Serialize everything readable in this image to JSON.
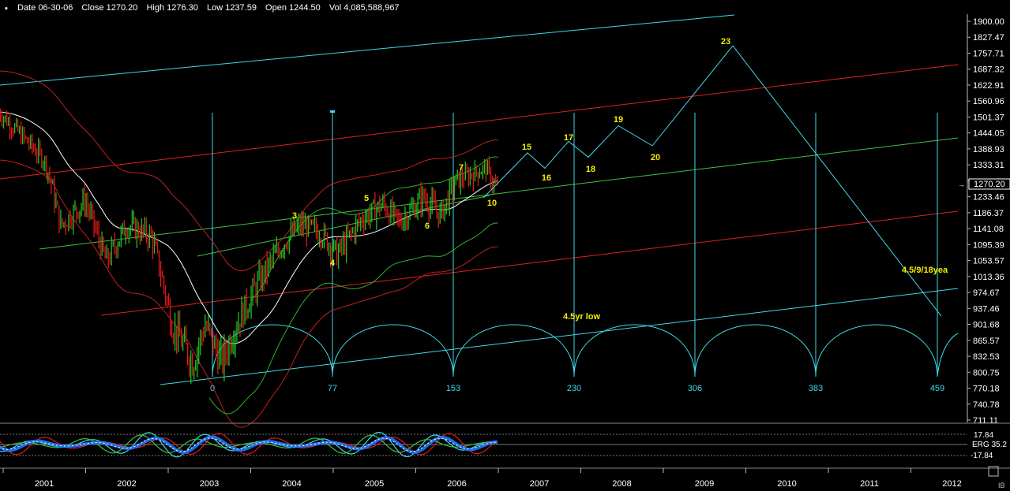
{
  "header": {
    "date_label": "Date",
    "date": "06-30-06",
    "close_label": "Close",
    "close": "1270.20",
    "high_label": "High",
    "high": "1276.30",
    "low_label": "Low",
    "low": "1237.59",
    "open_label": "Open",
    "open": "1244.50",
    "vol_label": "Vol",
    "vol": "4,085,588,967"
  },
  "chart_data": {
    "type": "line",
    "price_axis_ticks": [
      "1900.00",
      "1827.47",
      "1757.71",
      "1687.32",
      "1622.91",
      "1560.96",
      "1501.37",
      "1444.05",
      "1388.93",
      "1333.31",
      "1270.20",
      "1233.46",
      "1186.37",
      "1141.08",
      "1095.39",
      "1053.57",
      "1013.36",
      "974.67",
      "937.46",
      "901.68",
      "865.57",
      "832.53",
      "800.75",
      "770.18",
      "740.78",
      "711.11"
    ],
    "last_price": "1270.20",
    "year_labels": [
      "2001",
      "2002",
      "2003",
      "2004",
      "2005",
      "2006",
      "2007",
      "2008",
      "2009",
      "2010",
      "2011",
      "2012"
    ],
    "cycle_counts": [
      "0",
      "77",
      "153",
      "230",
      "306",
      "383",
      "459"
    ],
    "wave_labels": [
      "3",
      "4",
      "5",
      "6",
      "7",
      "10",
      "15",
      "16",
      "17",
      "18",
      "19",
      "20",
      "23"
    ],
    "annotations": [
      "4.5yr low",
      "4.5/9/18yea"
    ],
    "indicator": {
      "name": "ERG",
      "value": "35.2",
      "upper_label": "17.84",
      "lower_label": "-17.84"
    },
    "projection": [
      {
        "label": "10",
        "value": 1230
      },
      {
        "label": "15",
        "value": 1375
      },
      {
        "label": "16",
        "value": 1320
      },
      {
        "label": "17",
        "value": 1415
      },
      {
        "label": "18",
        "value": 1360
      },
      {
        "label": "19",
        "value": 1470
      },
      {
        "label": "20",
        "value": 1400
      },
      {
        "label": "23",
        "value": 1790
      },
      {
        "label": "",
        "value": 920
      }
    ],
    "colors": {
      "background": "#000000",
      "axis_text": "#ffffff",
      "channel_cyan": "#40d8e8",
      "channel_red": "#e02020",
      "channel_green": "#40c040",
      "wave_labels": "#f0f000",
      "candle_up": "#20c020",
      "candle_down": "#e01818"
    }
  }
}
